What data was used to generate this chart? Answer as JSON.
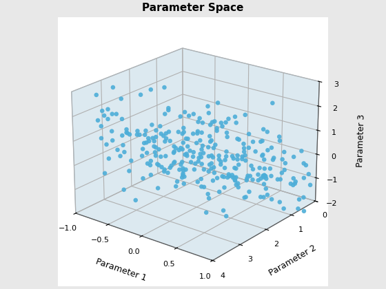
{
  "title": "Parameter Space",
  "xlabel": "Parameter 1",
  "ylabel": "Parameter 2",
  "zlabel": "Parameter 3",
  "xlim": [
    -1,
    1
  ],
  "ylim": [
    0,
    4
  ],
  "zlim": [
    -2,
    3
  ],
  "xticks": [
    -1,
    -0.5,
    0,
    0.5,
    1
  ],
  "yticks": [
    0,
    1,
    2,
    3,
    4
  ],
  "zticks": [
    -2,
    -1,
    0,
    1,
    2,
    3
  ],
  "dot_color": "#4daed8",
  "dot_size": 22,
  "background_color": "#e8e8e8",
  "pane_color": "#dce9f0",
  "pane_edge_color": "#b0c4d0",
  "grid_color": "#c8d8e0",
  "n_points": 300,
  "seed": 42,
  "elev": 22,
  "azim": -52
}
